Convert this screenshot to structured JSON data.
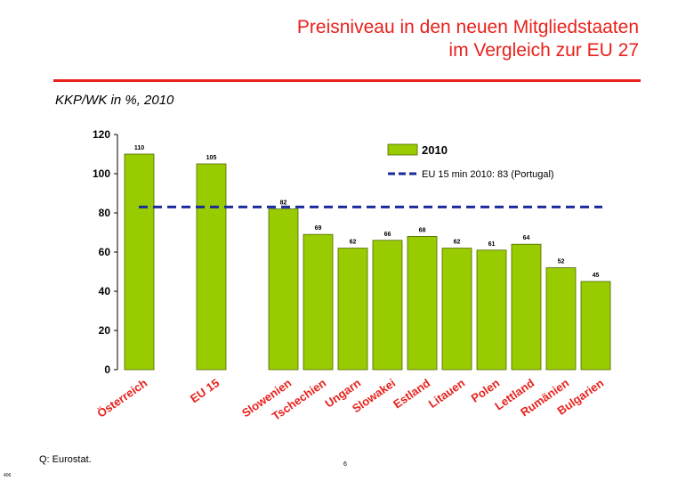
{
  "header": {
    "title_line1": "Preisniveau in den neuen Mitgliedstaaten",
    "title_line2": "im Vergleich zur EU 27",
    "subtitle": "KKP/WK in %, 2010"
  },
  "footer": {
    "source": "Q: Eurostat.",
    "page_number": "6",
    "corner_code": "406"
  },
  "colors": {
    "title": "#e8211c",
    "bar_fill": "#99cc00",
    "bar_stroke": "#4d6600",
    "reference_line": "#1a2a9c"
  },
  "chart_data": {
    "type": "bar",
    "categories": [
      "Österreich",
      "EU 15",
      "Slowenien",
      "Tschechien",
      "Ungarn",
      "Slowakei",
      "Estland",
      "Litauen",
      "Polen",
      "Lettland",
      "Rumänien",
      "Bulgarien"
    ],
    "series": [
      {
        "name": "2010",
        "values": [
          110,
          105,
          82,
          69,
          62,
          66,
          68,
          62,
          61,
          64,
          52,
          45
        ]
      }
    ],
    "gaps_after": [
      "Österreich",
      "EU 15"
    ],
    "reference_line": {
      "value": 83,
      "label": "EU 15 min 2010: 83 (Portugal)"
    },
    "ylim": [
      0,
      120
    ],
    "yticks": [
      0,
      20,
      40,
      60,
      80,
      100,
      120
    ],
    "legend_position": "top-right",
    "grid": false,
    "data_labels": true
  }
}
